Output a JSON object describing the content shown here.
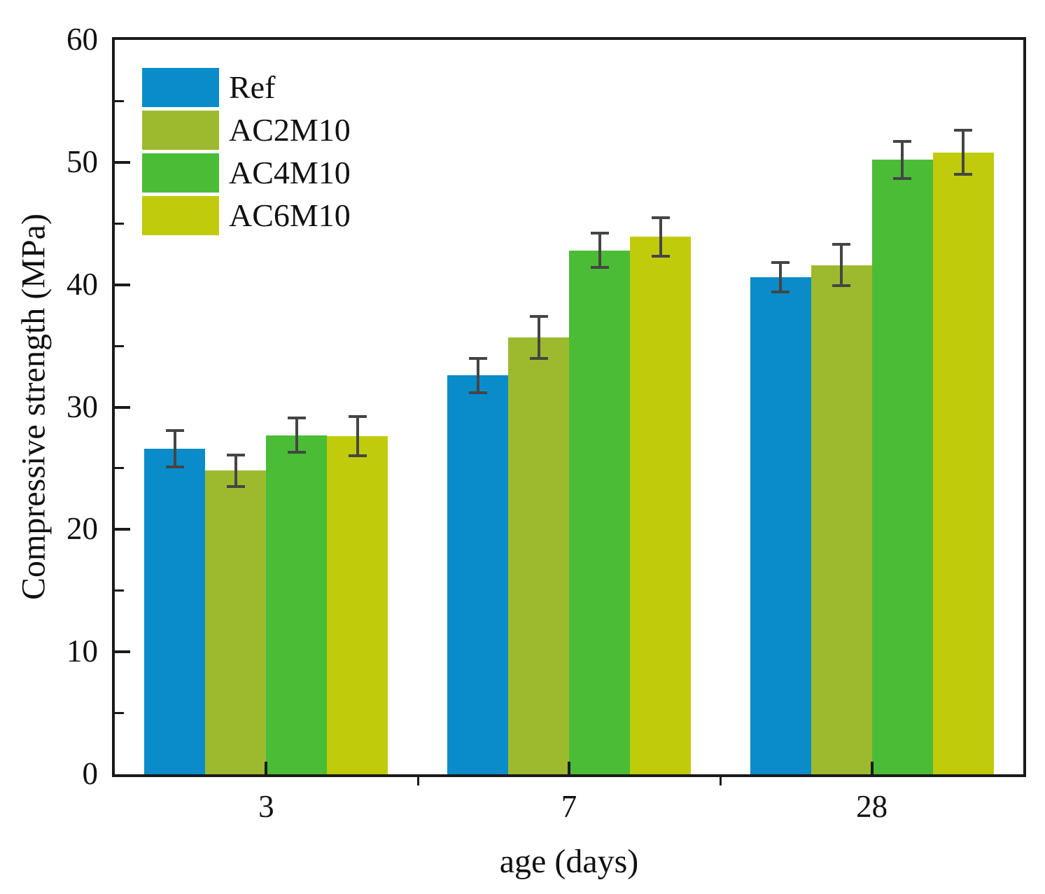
{
  "chart_data": {
    "type": "bar",
    "title": "",
    "xlabel": "age (days)",
    "ylabel": "Compressive strength (MPa)",
    "categories": [
      "3",
      "7",
      "28"
    ],
    "series": [
      {
        "name": "Ref",
        "color": "#0a8cca",
        "values": [
          26.6,
          32.6,
          40.6
        ],
        "errors": [
          1.5,
          1.4,
          1.2
        ]
      },
      {
        "name": "AC2M10",
        "color": "#9dba2e",
        "values": [
          24.8,
          35.7,
          41.6
        ],
        "errors": [
          1.3,
          1.7,
          1.7
        ]
      },
      {
        "name": "AC4M10",
        "color": "#4bbc35",
        "values": [
          27.7,
          42.8,
          50.2
        ],
        "errors": [
          1.4,
          1.4,
          1.5
        ]
      },
      {
        "name": "AC6M10",
        "color": "#bfcb0b",
        "values": [
          27.6,
          43.9,
          50.8
        ],
        "errors": [
          1.6,
          1.6,
          1.8
        ]
      }
    ],
    "ylim": [
      0,
      60
    ],
    "yticks_major": [
      0,
      10,
      20,
      30,
      40,
      50,
      60
    ],
    "yticks_minor": [
      5,
      15,
      25,
      35,
      45,
      55
    ],
    "grid": false,
    "legend_position": "top-left",
    "axis_color": "#1a1a1a",
    "error_bar_color": "#454545",
    "background_color": "#ffffff"
  }
}
